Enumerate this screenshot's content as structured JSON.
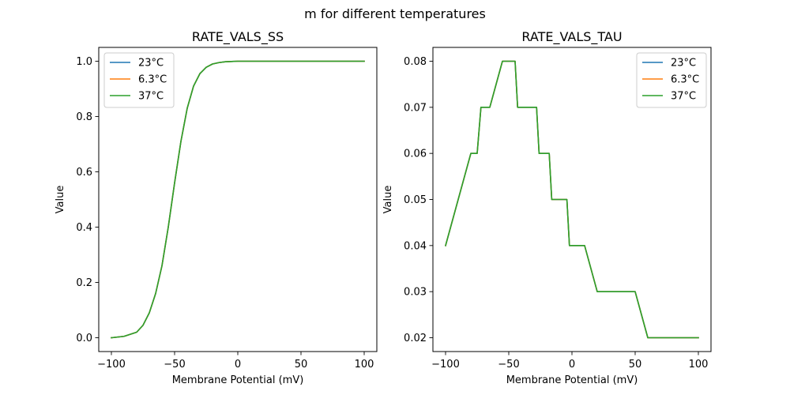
{
  "suptitle": "m for different temperatures",
  "colors": {
    "series0": "#1f77b4",
    "series1": "#ff7f0e",
    "series2": "#2ca02c"
  },
  "chart_data": [
    {
      "type": "line",
      "title": "RATE_VALS_SS",
      "xlabel": "Membrane Potential (mV)",
      "ylabel": "Value",
      "xlim": [
        -110,
        110
      ],
      "ylim": [
        -0.05,
        1.05
      ],
      "xticks": [
        -100,
        -50,
        0,
        50,
        100
      ],
      "xtick_labels": [
        "−100",
        "−50",
        "0",
        "50",
        "100"
      ],
      "yticks": [
        0.0,
        0.2,
        0.4,
        0.6,
        0.8,
        1.0
      ],
      "ytick_labels": [
        "0.0",
        "0.2",
        "0.4",
        "0.6",
        "0.8",
        "1.0"
      ],
      "legend_position": "top-left",
      "x": [
        -100,
        -90,
        -80,
        -75,
        -70,
        -65,
        -60,
        -55,
        -50,
        -45,
        -40,
        -35,
        -30,
        -25,
        -20,
        -15,
        -10,
        -5,
        0,
        10,
        20,
        50,
        100
      ],
      "series": [
        {
          "name": "23°C",
          "values": [
            0.0,
            0.005,
            0.02,
            0.045,
            0.09,
            0.16,
            0.26,
            0.4,
            0.56,
            0.71,
            0.83,
            0.91,
            0.955,
            0.978,
            0.99,
            0.995,
            0.998,
            0.999,
            1.0,
            1.0,
            1.0,
            1.0,
            1.0
          ]
        },
        {
          "name": "6.3°C",
          "values": [
            0.0,
            0.005,
            0.02,
            0.045,
            0.09,
            0.16,
            0.26,
            0.4,
            0.56,
            0.71,
            0.83,
            0.91,
            0.955,
            0.978,
            0.99,
            0.995,
            0.998,
            0.999,
            1.0,
            1.0,
            1.0,
            1.0,
            1.0
          ]
        },
        {
          "name": "37°C",
          "values": [
            0.0,
            0.005,
            0.02,
            0.045,
            0.09,
            0.16,
            0.26,
            0.4,
            0.56,
            0.71,
            0.83,
            0.91,
            0.955,
            0.978,
            0.99,
            0.995,
            0.998,
            0.999,
            1.0,
            1.0,
            1.0,
            1.0,
            1.0
          ]
        }
      ]
    },
    {
      "type": "line",
      "title": "RATE_VALS_TAU",
      "xlabel": "Membrane Potential (mV)",
      "ylabel": "Value",
      "xlim": [
        -110,
        110
      ],
      "ylim": [
        0.017,
        0.083
      ],
      "xticks": [
        -100,
        -50,
        0,
        50,
        100
      ],
      "xtick_labels": [
        "−100",
        "−50",
        "0",
        "50",
        "100"
      ],
      "yticks": [
        0.02,
        0.03,
        0.04,
        0.05,
        0.06,
        0.07,
        0.08
      ],
      "ytick_labels": [
        "0.02",
        "0.03",
        "0.04",
        "0.05",
        "0.06",
        "0.07",
        "0.08"
      ],
      "legend_position": "top-right",
      "x": [
        -100,
        -80,
        -75,
        -72,
        -65,
        -55,
        -45,
        -43,
        -28,
        -26,
        -18,
        -16,
        -4,
        -2,
        10,
        20,
        30,
        50,
        60,
        100
      ],
      "series": [
        {
          "name": "23°C",
          "values": [
            0.04,
            0.06,
            0.06,
            0.07,
            0.07,
            0.08,
            0.08,
            0.07,
            0.07,
            0.06,
            0.06,
            0.05,
            0.05,
            0.04,
            0.04,
            0.03,
            0.03,
            0.03,
            0.02,
            0.02
          ]
        },
        {
          "name": "6.3°C",
          "values": [
            0.04,
            0.06,
            0.06,
            0.07,
            0.07,
            0.08,
            0.08,
            0.07,
            0.07,
            0.06,
            0.06,
            0.05,
            0.05,
            0.04,
            0.04,
            0.03,
            0.03,
            0.03,
            0.02,
            0.02
          ]
        },
        {
          "name": "37°C",
          "values": [
            0.04,
            0.06,
            0.06,
            0.07,
            0.07,
            0.08,
            0.08,
            0.07,
            0.07,
            0.06,
            0.06,
            0.05,
            0.05,
            0.04,
            0.04,
            0.03,
            0.03,
            0.03,
            0.02,
            0.02
          ]
        }
      ]
    }
  ]
}
